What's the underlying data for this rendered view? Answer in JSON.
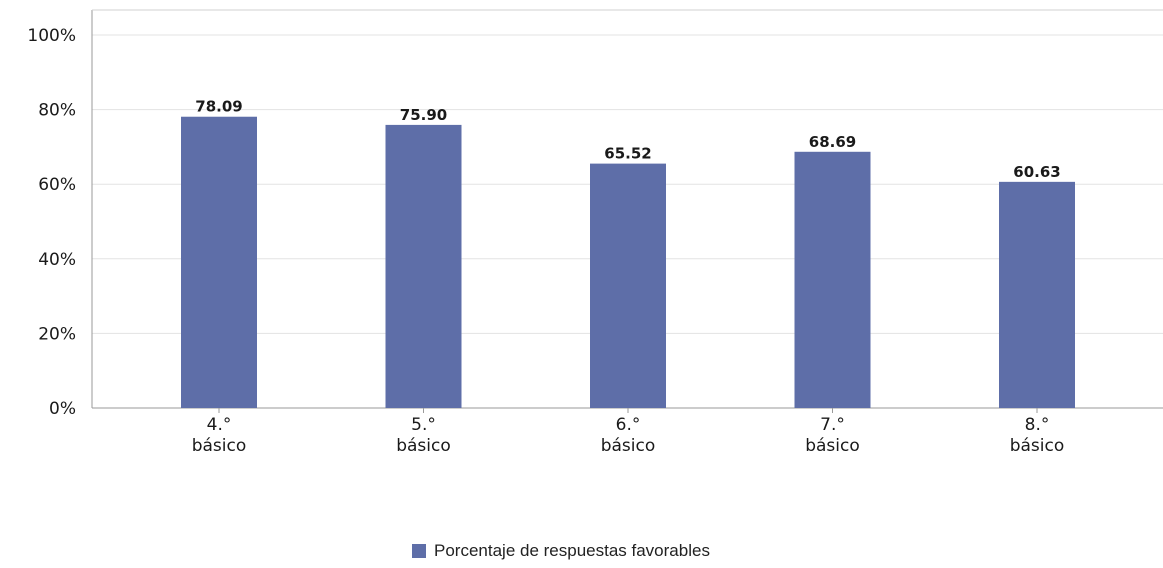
{
  "chart_data": {
    "type": "bar",
    "categories": [
      [
        "4.°",
        "básico"
      ],
      [
        "5.°",
        "básico"
      ],
      [
        "6.°",
        "básico"
      ],
      [
        "7.°",
        "básico"
      ],
      [
        "8.°",
        "básico"
      ]
    ],
    "series": [
      {
        "name": "Porcentaje de respuestas favorables",
        "values": [
          78.09,
          75.9,
          65.52,
          68.69,
          60.63
        ],
        "value_labels": [
          "78.09",
          "75.90",
          "65.52",
          "68.69",
          "60.63"
        ],
        "color": "#5e6ea8"
      }
    ],
    "y_ticks": [
      0,
      20,
      40,
      60,
      80,
      100
    ],
    "y_tick_labels": [
      "0%",
      "20%",
      "40%",
      "60%",
      "80%",
      "100%"
    ],
    "ylim": [
      0,
      100
    ],
    "grid": true,
    "legend_position": "bottom-center",
    "title": "",
    "xlabel": "",
    "ylabel": ""
  },
  "legend": {
    "label": "Porcentaje de respuestas favorables",
    "color": "#5e6ea8"
  }
}
